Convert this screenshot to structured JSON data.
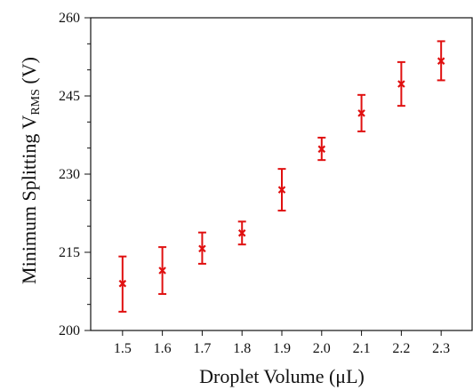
{
  "chart_data": {
    "type": "scatter",
    "xlabel": "Droplet Volume (μL)",
    "ylabel": {
      "prefix": "Minimum Splitting V",
      "subscript": "RMS",
      "suffix": " (V)"
    },
    "x_ticks": [
      "1.5",
      "1.6",
      "1.7",
      "1.8",
      "1.9",
      "2.0",
      "2.1",
      "2.2",
      "2.3"
    ],
    "y_ticks": [
      "200",
      "215",
      "230",
      "245",
      "260"
    ],
    "xlim": [
      1.42,
      2.38
    ],
    "ylim": [
      200,
      260
    ],
    "grid": false,
    "marker": "x",
    "color": "#e01010",
    "points": [
      {
        "x": 1.5,
        "y": 209.0,
        "err_low": 203.6,
        "err_high": 214.2
      },
      {
        "x": 1.6,
        "y": 211.5,
        "err_low": 207.0,
        "err_high": 216.0
      },
      {
        "x": 1.7,
        "y": 215.7,
        "err_low": 212.8,
        "err_high": 218.8
      },
      {
        "x": 1.8,
        "y": 218.7,
        "err_low": 216.5,
        "err_high": 220.9
      },
      {
        "x": 1.9,
        "y": 227.0,
        "err_low": 223.0,
        "err_high": 231.0
      },
      {
        "x": 2.0,
        "y": 234.8,
        "err_low": 232.7,
        "err_high": 237.0
      },
      {
        "x": 2.1,
        "y": 241.7,
        "err_low": 238.2,
        "err_high": 245.2
      },
      {
        "x": 2.2,
        "y": 247.3,
        "err_low": 243.1,
        "err_high": 251.5
      },
      {
        "x": 2.3,
        "y": 251.7,
        "err_low": 248.0,
        "err_high": 255.5
      }
    ]
  }
}
